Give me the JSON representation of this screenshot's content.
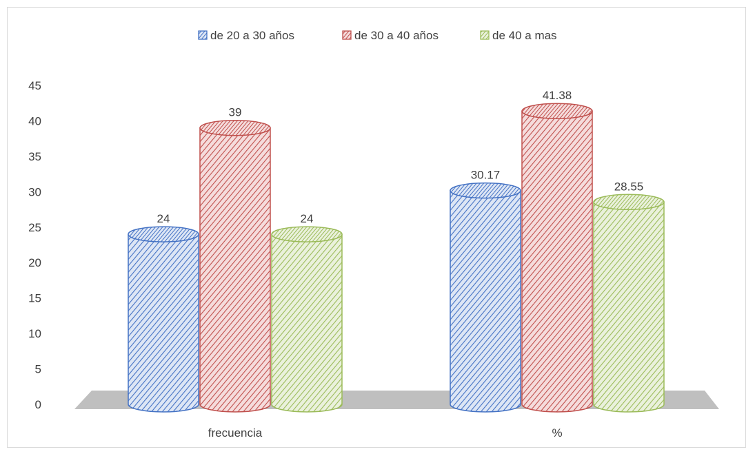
{
  "chart_data": {
    "type": "bar",
    "style": "3d-cylinder",
    "categories": [
      "frecuencia",
      "%"
    ],
    "series": [
      {
        "name": "de 20 a 30 años",
        "values": [
          24,
          30.17
        ],
        "labels": [
          "24",
          "30.17"
        ],
        "color": "#4472c4",
        "light": "#dde6f5"
      },
      {
        "name": "de 30 a 40 años",
        "values": [
          39,
          41.38
        ],
        "labels": [
          "39",
          "41.38"
        ],
        "color": "#c0504d",
        "light": "#f5dcdc"
      },
      {
        "name": "de 40 a mas",
        "values": [
          24,
          28.55
        ],
        "labels": [
          "24",
          "28.55"
        ],
        "color": "#9bbb59",
        "light": "#eaf1dc"
      }
    ],
    "ylim": [
      0,
      45
    ],
    "yticks": [
      0,
      5,
      10,
      15,
      20,
      25,
      30,
      35,
      40,
      45
    ],
    "legend_position": "top",
    "grid": false,
    "floor_color": "#bfbfbf"
  }
}
